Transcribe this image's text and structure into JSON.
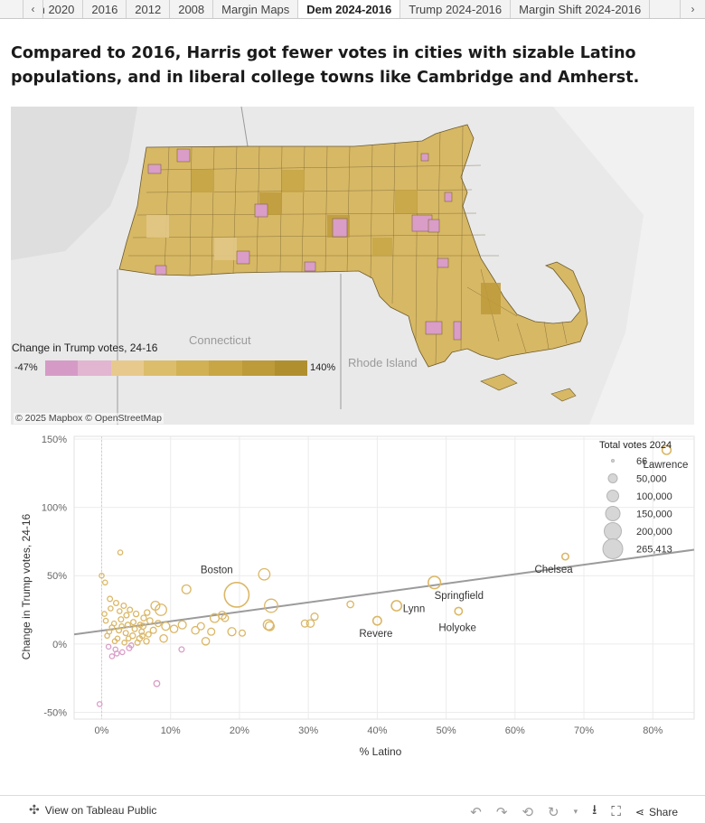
{
  "tabs": {
    "items": [
      "m 2020",
      "2016",
      "2012",
      "2008",
      "Margin Maps",
      "Dem 2024-2016",
      "Trump 2024-2016",
      "Margin Shift 2024-2016"
    ],
    "active_index": 5,
    "left_icon": "chevron-left-icon",
    "right_icon": "chevron-right-icon"
  },
  "headline": "Compared to 2016, Harris got fewer votes in cities with sizable Latino populations, and in liberal college towns like Cambridge and Amherst.",
  "map": {
    "labels": {
      "connecticut": "Connecticut",
      "rhode_island": "Rhode Island"
    },
    "legend": {
      "title": "Change in Trump votes, 24-16",
      "min": "-47%",
      "max": "140%",
      "colors": [
        "#d59bc6",
        "#e2b5d0",
        "#e8c98d",
        "#dcbd6b",
        "#d1b153",
        "#c8a646",
        "#bd9a3a",
        "#b0902e"
      ]
    },
    "attribution": "© 2025 Mapbox © OpenStreetMap"
  },
  "chart_data": {
    "type": "scatter",
    "title": "",
    "xlabel": "% Latino",
    "ylabel": "Change in Trump votes, 24-16",
    "xlim": [
      -4,
      86
    ],
    "ylim": [
      -55,
      152
    ],
    "x_ticks": [
      "0%",
      "10%",
      "20%",
      "30%",
      "40%",
      "50%",
      "60%",
      "70%",
      "80%"
    ],
    "x_tick_values": [
      0,
      10,
      20,
      30,
      40,
      50,
      60,
      70,
      80
    ],
    "y_ticks": [
      "-50%",
      "0%",
      "50%",
      "100%",
      "150%"
    ],
    "y_tick_values": [
      -50,
      0,
      50,
      100,
      150
    ],
    "grid": true,
    "trend_line": {
      "x": [
        -4,
        86
      ],
      "y": [
        7,
        69
      ]
    },
    "labeled_points": [
      {
        "name": "Boston",
        "x": 19.6,
        "y": 36,
        "votes": 265413
      },
      {
        "name": "Springfield",
        "x": 48.3,
        "y": 45,
        "votes": 50000
      },
      {
        "name": "Lynn",
        "x": 42.8,
        "y": 28,
        "votes": 30000
      },
      {
        "name": "Revere",
        "x": 40.0,
        "y": 17,
        "votes": 18000
      },
      {
        "name": "Holyoke",
        "x": 51.8,
        "y": 24,
        "votes": 12000
      },
      {
        "name": "Chelsea",
        "x": 67.3,
        "y": 64,
        "votes": 8000
      },
      {
        "name": "Lawrence",
        "x": 82.0,
        "y": 142,
        "votes": 20000
      }
    ],
    "points": [
      {
        "x": 23.6,
        "y": 51,
        "votes": 40000
      },
      {
        "x": 24.6,
        "y": 28,
        "votes": 60000
      },
      {
        "x": 24.2,
        "y": 14,
        "votes": 30000
      },
      {
        "x": 24.4,
        "y": 13,
        "votes": 20000
      },
      {
        "x": 36.1,
        "y": 29,
        "votes": 8000
      },
      {
        "x": 30.9,
        "y": 20,
        "votes": 10000
      },
      {
        "x": 30.3,
        "y": 15,
        "votes": 12000
      },
      {
        "x": 29.5,
        "y": 15,
        "votes": 10000
      },
      {
        "x": 18.9,
        "y": 9,
        "votes": 15000
      },
      {
        "x": 17.5,
        "y": 21,
        "votes": 14000
      },
      {
        "x": 17.9,
        "y": 19,
        "votes": 9000
      },
      {
        "x": 16.4,
        "y": 19,
        "votes": 20000
      },
      {
        "x": 15.9,
        "y": 9,
        "votes": 10000
      },
      {
        "x": 15.1,
        "y": 2,
        "votes": 12000
      },
      {
        "x": 14.4,
        "y": 13,
        "votes": 10000
      },
      {
        "x": 13.6,
        "y": 10,
        "votes": 12000
      },
      {
        "x": 11.7,
        "y": 14,
        "votes": 15000
      },
      {
        "x": 12.3,
        "y": 40,
        "votes": 20000
      },
      {
        "x": 8.6,
        "y": 25,
        "votes": 40000
      },
      {
        "x": 7.8,
        "y": 28,
        "votes": 20000
      },
      {
        "x": 9.3,
        "y": 13,
        "votes": 15000
      },
      {
        "x": 9.0,
        "y": 4,
        "votes": 12000
      },
      {
        "x": 10.5,
        "y": 11,
        "votes": 12000
      },
      {
        "x": 20.4,
        "y": 8,
        "votes": 6000
      },
      {
        "x": 11.6,
        "y": -4,
        "votes": 3000
      },
      {
        "x": 8.0,
        "y": -29,
        "votes": 5000
      },
      {
        "x": -0.3,
        "y": -44,
        "votes": 2000
      },
      {
        "x": 2.7,
        "y": 67,
        "votes": 2000
      },
      {
        "x": 0.0,
        "y": 50,
        "votes": 2000
      },
      {
        "x": 0.5,
        "y": 45,
        "votes": 2000
      },
      {
        "x": 1.2,
        "y": 33,
        "votes": 3000
      },
      {
        "x": 2.1,
        "y": 30,
        "votes": 3000
      },
      {
        "x": 3.2,
        "y": 28,
        "votes": 3000
      },
      {
        "x": 4.1,
        "y": 25,
        "votes": 3000
      },
      {
        "x": 5.0,
        "y": 22,
        "votes": 4000
      },
      {
        "x": 6.1,
        "y": 19,
        "votes": 4000
      },
      {
        "x": 7.0,
        "y": 17,
        "votes": 5000
      },
      {
        "x": 1.5,
        "y": 12,
        "votes": 3000
      },
      {
        "x": 2.5,
        "y": 10,
        "votes": 3000
      },
      {
        "x": 3.5,
        "y": 8,
        "votes": 3000
      },
      {
        "x": 4.5,
        "y": 6,
        "votes": 4000
      },
      {
        "x": 5.5,
        "y": 4,
        "votes": 4000
      },
      {
        "x": 6.5,
        "y": 2,
        "votes": 4000
      },
      {
        "x": 1.0,
        "y": -2,
        "votes": 2000
      },
      {
        "x": 2.0,
        "y": -4,
        "votes": 2000
      },
      {
        "x": 3.0,
        "y": -6,
        "votes": 2000
      },
      {
        "x": 1.5,
        "y": -9,
        "votes": 2000
      },
      {
        "x": 2.2,
        "y": -7,
        "votes": 2000
      },
      {
        "x": 4.0,
        "y": -3,
        "votes": 3000
      },
      {
        "x": 5.2,
        "y": 1,
        "votes": 3000
      },
      {
        "x": 0.8,
        "y": 6,
        "votes": 2000
      },
      {
        "x": 1.8,
        "y": 15,
        "votes": 2000
      },
      {
        "x": 2.8,
        "y": 18,
        "votes": 3000
      },
      {
        "x": 3.8,
        "y": 14,
        "votes": 3000
      },
      {
        "x": 4.8,
        "y": 11,
        "votes": 3000
      },
      {
        "x": 5.8,
        "y": 9,
        "votes": 3000
      },
      {
        "x": 6.8,
        "y": 7,
        "votes": 3000
      },
      {
        "x": 0.4,
        "y": 22,
        "votes": 2000
      },
      {
        "x": 1.3,
        "y": 26,
        "votes": 2000
      },
      {
        "x": 2.3,
        "y": 4,
        "votes": 2000
      },
      {
        "x": 3.3,
        "y": 1,
        "votes": 2000
      },
      {
        "x": 4.3,
        "y": -1,
        "votes": 2000
      },
      {
        "x": 6.0,
        "y": 13,
        "votes": 5000
      },
      {
        "x": 7.5,
        "y": 10,
        "votes": 6000
      },
      {
        "x": 0.6,
        "y": 17,
        "votes": 2000
      },
      {
        "x": 3.6,
        "y": 21,
        "votes": 3000
      },
      {
        "x": 2.6,
        "y": 24,
        "votes": 2000
      },
      {
        "x": 4.6,
        "y": 16,
        "votes": 3000
      },
      {
        "x": 5.6,
        "y": 14,
        "votes": 3000
      },
      {
        "x": 1.1,
        "y": 9,
        "votes": 2000
      },
      {
        "x": 2.9,
        "y": 13,
        "votes": 2000
      },
      {
        "x": 8.2,
        "y": 15,
        "votes": 6000
      },
      {
        "x": 1.9,
        "y": 2,
        "votes": 2000
      },
      {
        "x": 3.9,
        "y": 4,
        "votes": 2000
      },
      {
        "x": 5.9,
        "y": 6,
        "votes": 3000
      },
      {
        "x": 6.6,
        "y": 23,
        "votes": 4000
      }
    ],
    "size_legend": {
      "title": "Total votes 2024",
      "items": [
        "66",
        "50,000",
        "100,000",
        "150,000",
        "200,000",
        "265,413"
      ]
    }
  },
  "colors": {
    "trump_gain": "#dbb766",
    "trump_loss": "#d99dc7",
    "trend": "#9b9b9b",
    "map_border": "#6d5a2c"
  },
  "footer": {
    "view_link": "View on Tableau Public",
    "share": "Share",
    "icons": [
      "undo-icon",
      "redo-icon",
      "revert-icon",
      "refresh-icon",
      "download-icon",
      "fullscreen-icon",
      "share-icon"
    ]
  }
}
